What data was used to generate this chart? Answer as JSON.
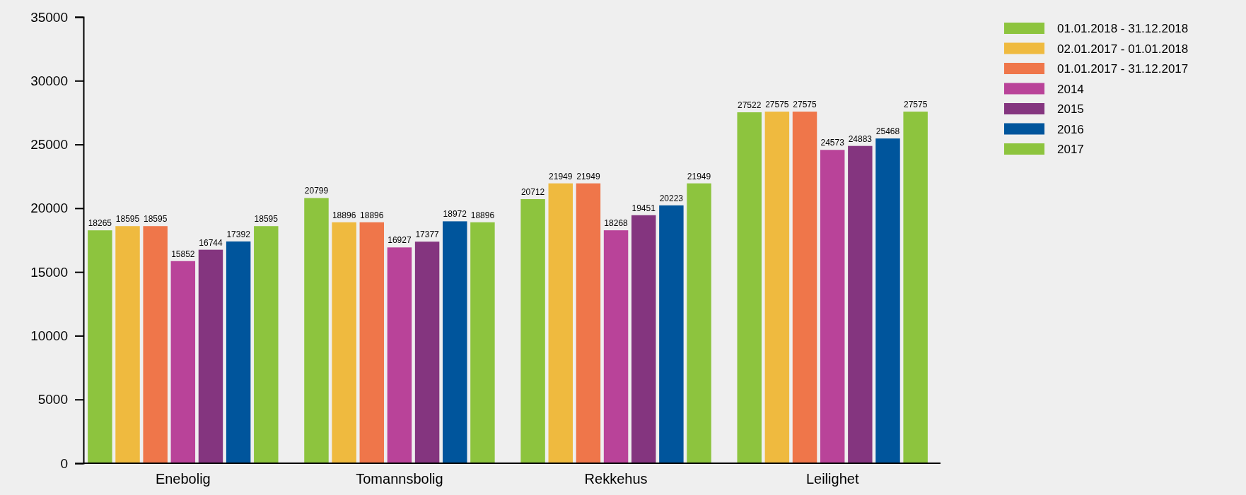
{
  "chart_data": {
    "type": "bar",
    "categories": [
      "Enebolig",
      "Tomannsbolig",
      "Rekkehus",
      "Leilighet"
    ],
    "series": [
      {
        "name": "01.01.2018 - 31.12.2018",
        "color": "#8dc43e",
        "values": [
          18265,
          20799,
          20712,
          27522
        ]
      },
      {
        "name": "02.01.2017 - 01.01.2018",
        "color": "#efba3f",
        "values": [
          18595,
          18896,
          21949,
          27575
        ]
      },
      {
        "name": "01.01.2017 - 31.12.2017",
        "color": "#ef764a",
        "values": [
          18595,
          18896,
          21949,
          27575
        ]
      },
      {
        "name": "2014",
        "color": "#b94399",
        "values": [
          15852,
          16927,
          18268,
          24573
        ]
      },
      {
        "name": "2015",
        "color": "#84357f",
        "values": [
          16744,
          17377,
          19451,
          24883
        ]
      },
      {
        "name": "2016",
        "color": "#00559c",
        "values": [
          17392,
          18972,
          20223,
          25468
        ]
      },
      {
        "name": "2017",
        "color": "#8dc43e",
        "values": [
          18595,
          18896,
          21949,
          27575
        ]
      }
    ],
    "ylim": [
      0,
      35000
    ],
    "yticks": [
      0,
      5000,
      10000,
      15000,
      20000,
      25000,
      30000,
      35000
    ],
    "data_labels": true,
    "grid": false,
    "legend": "top right"
  }
}
